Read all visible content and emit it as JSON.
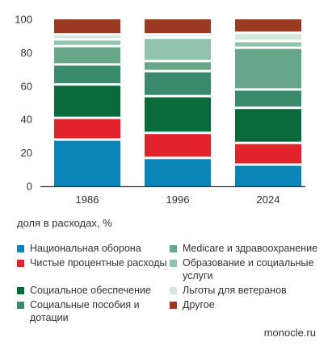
{
  "chart_data": {
    "type": "bar",
    "stacked": true,
    "categories": [
      "1986",
      "1996",
      "2024"
    ],
    "yticks": [
      "0",
      "20",
      "40",
      "60",
      "80",
      "100"
    ],
    "ylim": [
      0,
      100
    ],
    "ylabel": "доля в расходах, %",
    "grid": false,
    "legend_position": "bottom",
    "series": [
      {
        "name": "Национальная оборона",
        "color": "#0a85b8",
        "values": [
          28,
          17,
          13
        ]
      },
      {
        "name": "Чистые процентные расходы",
        "color": "#e3232b",
        "values": [
          13,
          15,
          13
        ]
      },
      {
        "name": "Социальное обеспечение",
        "color": "#0a6a3c",
        "values": [
          20,
          22,
          21
        ]
      },
      {
        "name": "Социальные пособия и дотации",
        "color": "#3a8a6e",
        "values": [
          12,
          15,
          11
        ]
      },
      {
        "name": "Medicare и здравоохранение",
        "color": "#68a68a",
        "values": [
          11,
          6,
          25
        ]
      },
      {
        "name": "Образование и социальные услуги",
        "color": "#92c3ab",
        "values": [
          4,
          14,
          4
        ]
      },
      {
        "name": "Льготы для ветеранов",
        "color": "#d4e8dd",
        "values": [
          3,
          2,
          5
        ]
      },
      {
        "name": "Другое",
        "color": "#9b3a22",
        "values": [
          9,
          9,
          8
        ]
      }
    ]
  },
  "footer": {
    "source": "monocle.ru"
  }
}
